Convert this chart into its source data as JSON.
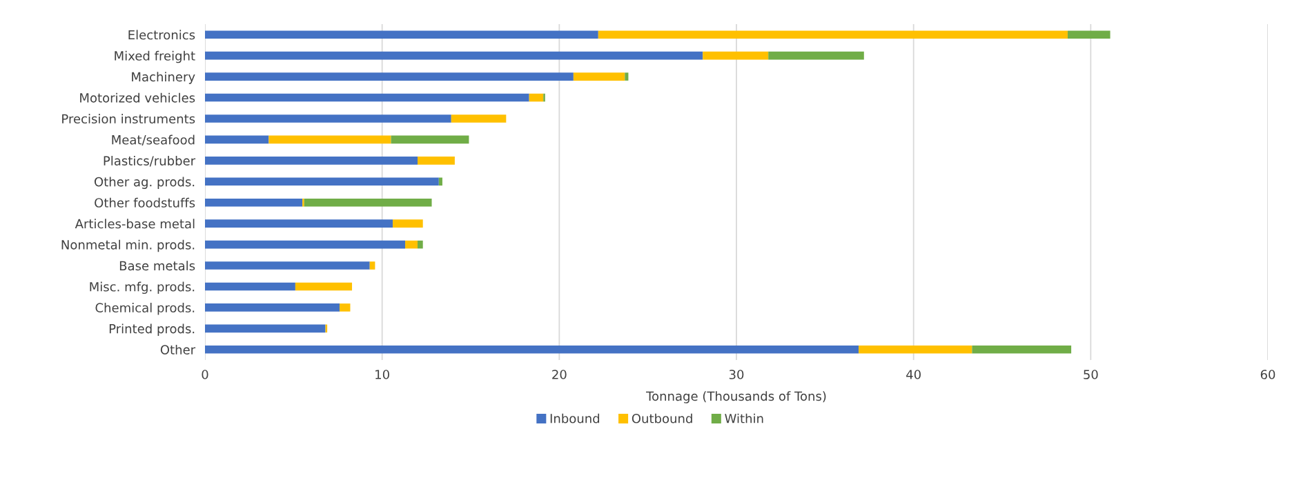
{
  "chart_data": {
    "type": "bar",
    "orientation": "horizontal",
    "stacked": true,
    "categories": [
      "Electronics",
      "Mixed freight",
      "Machinery",
      "Motorized vehicles",
      "Precision instruments",
      "Meat/seafood",
      "Plastics/rubber",
      "Other ag. prods.",
      "Other foodstuffs",
      "Articles-base metal",
      "Nonmetal min. prods.",
      "Base metals",
      "Misc. mfg. prods.",
      "Chemical prods.",
      "Printed prods.",
      "Other"
    ],
    "series": [
      {
        "name": "Inbound",
        "color": "#4472c4",
        "values": [
          22.2,
          28.1,
          20.8,
          18.3,
          13.9,
          3.6,
          12.0,
          13.2,
          5.5,
          10.6,
          11.3,
          9.3,
          5.1,
          7.6,
          6.8,
          36.9
        ]
      },
      {
        "name": "Outbound",
        "color": "#ffc000",
        "values": [
          26.5,
          3.7,
          2.9,
          0.8,
          3.1,
          6.9,
          2.1,
          0,
          0.1,
          1.7,
          0.7,
          0.3,
          3.2,
          0.6,
          0.1,
          6.4
        ]
      },
      {
        "name": "Within",
        "color": "#70ad47",
        "values": [
          2.4,
          5.4,
          0.2,
          0.1,
          0,
          4.4,
          0,
          0.2,
          7.2,
          0,
          0.3,
          0,
          0,
          0,
          0,
          5.6
        ]
      }
    ],
    "xlim": [
      0,
      60
    ],
    "xticks": [
      0,
      10,
      20,
      30,
      40,
      50,
      60
    ],
    "xlabel": "Tonnage (Thousands of Tons)",
    "grid": "x",
    "legend": "bottom"
  }
}
